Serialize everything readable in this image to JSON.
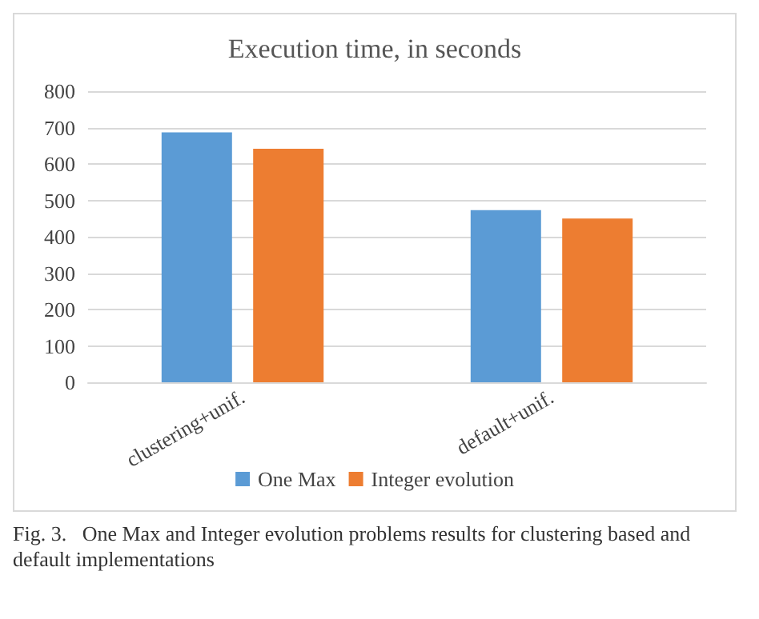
{
  "chart_data": {
    "type": "bar",
    "title": "Execution time, in seconds",
    "categories": [
      "clustering+unif.",
      "default+unif."
    ],
    "series": [
      {
        "name": "One Max",
        "color": "#5b9bd5",
        "values": [
          687,
          473
        ]
      },
      {
        "name": "Integer evolution",
        "color": "#ed7d31",
        "values": [
          642,
          450
        ]
      }
    ],
    "ylim": [
      0,
      800
    ],
    "yticks": [
      0,
      100,
      200,
      300,
      400,
      500,
      600,
      700,
      800
    ],
    "grid": "y",
    "legend": "bottom",
    "annotations": [
      "Fig. 3.   One Max and Integer evolution problems results for clustering based and default implementations"
    ]
  }
}
